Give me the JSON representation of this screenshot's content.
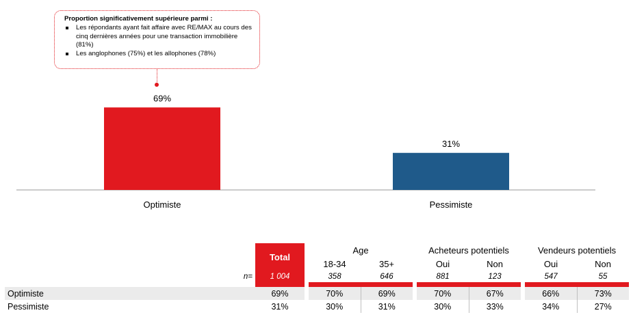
{
  "chart_data": {
    "type": "bar",
    "categories": [
      "Optimiste",
      "Pessimiste"
    ],
    "values": [
      69,
      31
    ],
    "data_labels": [
      "69%",
      "31%"
    ],
    "colors": [
      "#e1191f",
      "#1f5a8a"
    ],
    "unit": "%",
    "ylim": [
      0,
      100
    ],
    "title": "",
    "xlabel": "",
    "ylabel": ""
  },
  "callout": {
    "heading": "Proportion significativement supérieure parmi :",
    "bullets": [
      "Les répondants ayant fait affaire avec RE/MAX au cours des cinq dernières années pour une transaction immobilière (81%)",
      "Les anglophones (75%) et les allophones (78%)"
    ]
  },
  "table": {
    "total_label": "Total",
    "groups": [
      "Age",
      "Acheteurs potentiels",
      "Vendeurs potentiels"
    ],
    "columns": [
      "18-34",
      "35+",
      "Oui",
      "Non",
      "Oui",
      "Non"
    ],
    "n_label": "n=",
    "n_values": [
      "1 004",
      "358",
      "646",
      "881",
      "123",
      "547",
      "55"
    ],
    "rows": [
      {
        "label": "Optimiste",
        "values": [
          "69%",
          "70%",
          "69%",
          "70%",
          "67%",
          "66%",
          "73%"
        ]
      },
      {
        "label": "Pessimiste",
        "values": [
          "31%",
          "30%",
          "31%",
          "30%",
          "33%",
          "34%",
          "27%"
        ]
      }
    ]
  }
}
